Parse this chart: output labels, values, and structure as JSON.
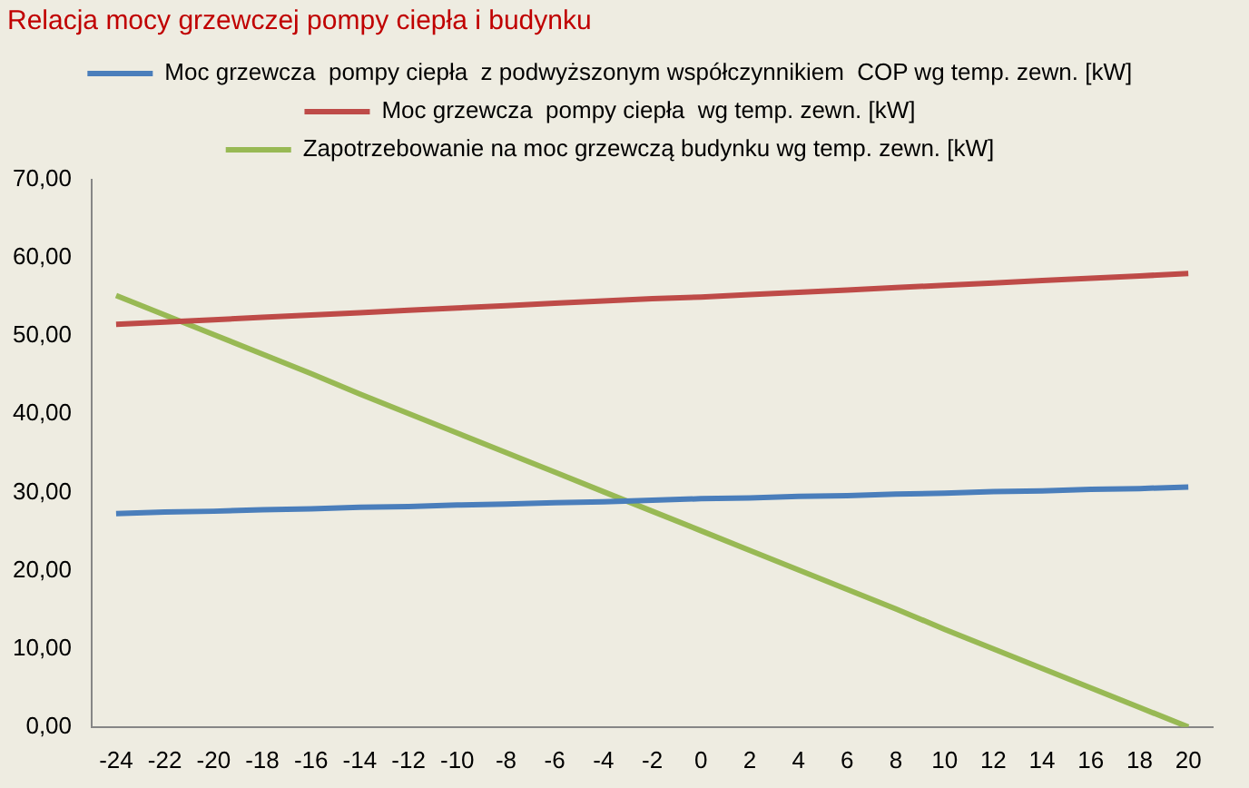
{
  "chart_data": {
    "type": "line",
    "title": "Relacja mocy grzewczej pompy ciepła i budynku",
    "categories": [
      "-24",
      "-22",
      "-20",
      "-18",
      "-16",
      "-14",
      "-12",
      "-10",
      "-8",
      "-6",
      "-4",
      "-2",
      "0",
      "2",
      "4",
      "6",
      "8",
      "10",
      "12",
      "14",
      "16",
      "18",
      "20"
    ],
    "series": [
      {
        "name": "Moc grzewcza  pompy ciepła  z podwyższonym współczynnikiem  COP wg temp. zewn. [kW]",
        "color": "#4a7ebb",
        "values": [
          27.3,
          27.5,
          27.6,
          27.8,
          27.9,
          28.1,
          28.2,
          28.4,
          28.5,
          28.7,
          28.8,
          29.0,
          29.2,
          29.3,
          29.5,
          29.6,
          29.8,
          29.9,
          30.1,
          30.2,
          30.4,
          30.5,
          30.7
        ]
      },
      {
        "name": "Moc grzewcza  pompy ciepła  wg temp. zewn. [kW]",
        "color": "#be4b48",
        "values": [
          51.5,
          51.8,
          52.1,
          52.4,
          52.7,
          53.0,
          53.3,
          53.6,
          53.9,
          54.2,
          54.5,
          54.8,
          55.0,
          55.3,
          55.6,
          55.9,
          56.2,
          56.5,
          56.8,
          57.1,
          57.4,
          57.7,
          58.0
        ]
      },
      {
        "name": "Zapotrzebowanie na moc grzewczą budynku wg temp. zewn. [kW]",
        "color": "#98b954",
        "values": [
          55.2,
          52.7,
          50.2,
          47.7,
          45.2,
          42.6,
          40.1,
          37.6,
          35.1,
          32.6,
          30.1,
          27.6,
          25.1,
          22.6,
          20.1,
          17.6,
          15.1,
          12.5,
          10.0,
          7.5,
          5.0,
          2.5,
          0
        ]
      }
    ],
    "ylim": [
      0,
      70
    ],
    "yticks": [
      {
        "value": 0,
        "label": "0,00"
      },
      {
        "value": 10,
        "label": "10,00"
      },
      {
        "value": 20,
        "label": "20,00"
      },
      {
        "value": 30,
        "label": "30,00"
      },
      {
        "value": 40,
        "label": "40,00"
      },
      {
        "value": 50,
        "label": "50,00"
      },
      {
        "value": 60,
        "label": "60,00"
      },
      {
        "value": 70,
        "label": "70,00"
      }
    ],
    "grid": false,
    "legend": "top",
    "marker": "none",
    "line_style": "solid"
  }
}
